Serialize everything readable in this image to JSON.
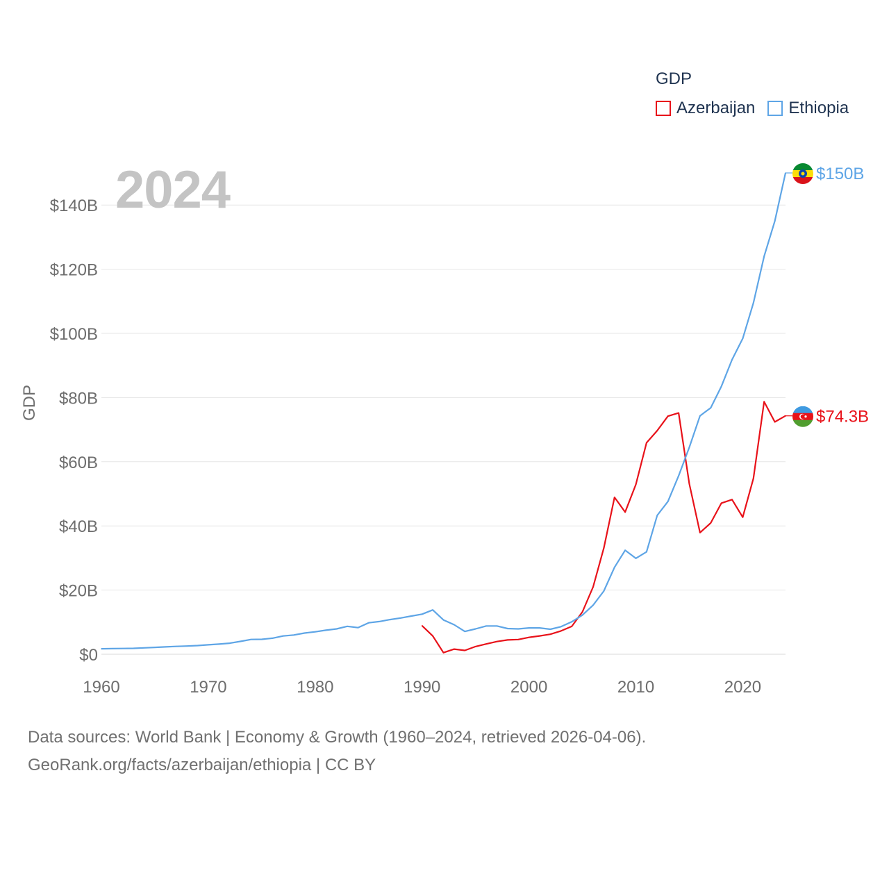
{
  "chart_data": {
    "type": "line",
    "title": "GDP",
    "ylabel": "GDP",
    "xlabel": "",
    "year_label": "2024",
    "xlim": [
      1960,
      2024
    ],
    "ylim": [
      0,
      150
    ],
    "y_ticks": [
      0,
      20,
      40,
      60,
      80,
      100,
      120,
      140
    ],
    "y_tick_labels": [
      "$0",
      "$20B",
      "$40B",
      "$60B",
      "$80B",
      "$100B",
      "$120B",
      "$140B"
    ],
    "x_ticks": [
      1960,
      1970,
      1980,
      1990,
      2000,
      2010,
      2020
    ],
    "x_tick_labels": [
      "1960",
      "1970",
      "1980",
      "1990",
      "2000",
      "2010",
      "2020"
    ],
    "grid": true,
    "legend": "top-right",
    "series": [
      {
        "name": "Azerbaijan",
        "color": "#e8121a",
        "end_label": "$74.3B",
        "flag_icon": "azerbaijan-flag-icon",
        "x": [
          1990,
          1991,
          1992,
          1993,
          1994,
          1995,
          1996,
          1997,
          1998,
          1999,
          2000,
          2001,
          2002,
          2003,
          2004,
          2005,
          2006,
          2007,
          2008,
          2009,
          2010,
          2011,
          2012,
          2013,
          2014,
          2015,
          2016,
          2017,
          2018,
          2019,
          2020,
          2021,
          2022,
          2023,
          2024
        ],
        "values": [
          8.9,
          5.7,
          0.5,
          1.6,
          1.2,
          2.4,
          3.2,
          3.96,
          4.45,
          4.58,
          5.27,
          5.71,
          6.24,
          7.28,
          8.68,
          13.2,
          21.0,
          33.1,
          48.9,
          44.3,
          52.9,
          65.9,
          69.7,
          74.2,
          75.2,
          53.1,
          37.9,
          40.9,
          47.1,
          48.2,
          42.7,
          54.8,
          78.7,
          72.4,
          74.3
        ]
      },
      {
        "name": "Ethiopia",
        "color": "#5ea5e6",
        "end_label": "$150B",
        "flag_icon": "ethiopia-flag-icon",
        "x": [
          1960,
          1961,
          1962,
          1963,
          1964,
          1965,
          1966,
          1967,
          1968,
          1969,
          1970,
          1971,
          1972,
          1973,
          1974,
          1975,
          1976,
          1977,
          1978,
          1979,
          1980,
          1981,
          1982,
          1983,
          1984,
          1985,
          1986,
          1987,
          1988,
          1989,
          1990,
          1991,
          1992,
          1993,
          1994,
          1995,
          1996,
          1997,
          1998,
          1999,
          2000,
          2001,
          2002,
          2003,
          2004,
          2005,
          2006,
          2007,
          2008,
          2009,
          2010,
          2011,
          2012,
          2013,
          2014,
          2015,
          2016,
          2017,
          2018,
          2019,
          2020,
          2021,
          2022,
          2023,
          2024
        ],
        "values": [
          1.7,
          1.75,
          1.8,
          1.85,
          2.0,
          2.15,
          2.3,
          2.45,
          2.55,
          2.7,
          2.95,
          3.15,
          3.45,
          4.0,
          4.6,
          4.65,
          5.0,
          5.7,
          6.0,
          6.6,
          7.0,
          7.5,
          7.9,
          8.7,
          8.3,
          9.8,
          10.2,
          10.8,
          11.3,
          11.9,
          12.5,
          13.8,
          10.7,
          9.2,
          7.1,
          7.9,
          8.8,
          8.8,
          8.0,
          7.9,
          8.2,
          8.2,
          7.8,
          8.6,
          10.1,
          12.2,
          15.3,
          19.7,
          27.1,
          32.4,
          29.9,
          31.9,
          43.3,
          47.6,
          55.6,
          64.5,
          74.3,
          76.8,
          83.5,
          91.8,
          98.4,
          109.5,
          124.0,
          135.0,
          150.0
        ]
      }
    ]
  },
  "legend": {
    "title": "GDP",
    "items": [
      "Azerbaijan",
      "Ethiopia"
    ]
  },
  "footer": {
    "line1": "Data sources: World Bank | Economy & Growth (1960–2024, retrieved 2026-04-06).",
    "line2": "GeoRank.org/facts/azerbaijan/ethiopia | CC BY"
  }
}
